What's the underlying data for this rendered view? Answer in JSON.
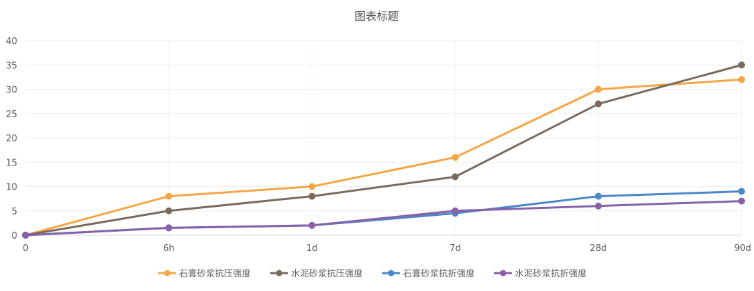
{
  "chart_data": {
    "type": "line",
    "title": "图表标题",
    "xlabel": "",
    "ylabel": "",
    "categories": [
      "0",
      "6h",
      "1d",
      "7d",
      "28d",
      "90d"
    ],
    "ylim": [
      0,
      40
    ],
    "yticks": [
      0,
      5,
      10,
      15,
      20,
      25,
      30,
      35,
      40
    ],
    "grid": true,
    "legend_position": "bottom",
    "series": [
      {
        "name": "石膏砂浆抗压强度",
        "color": "#F4A545",
        "values": [
          0,
          8,
          10,
          16,
          30,
          32
        ]
      },
      {
        "name": "水泥砂浆抗压强度",
        "color": "#7A6A5C",
        "values": [
          0,
          5,
          8,
          12,
          27,
          35
        ]
      },
      {
        "name": "石膏砂浆抗折强度",
        "color": "#4A86C8",
        "values": [
          0,
          1.5,
          2,
          4.5,
          8,
          9
        ]
      },
      {
        "name": "水泥砂浆抗折强度",
        "color": "#8761A8",
        "values": [
          0,
          1.5,
          2,
          5,
          6,
          7
        ]
      }
    ]
  }
}
